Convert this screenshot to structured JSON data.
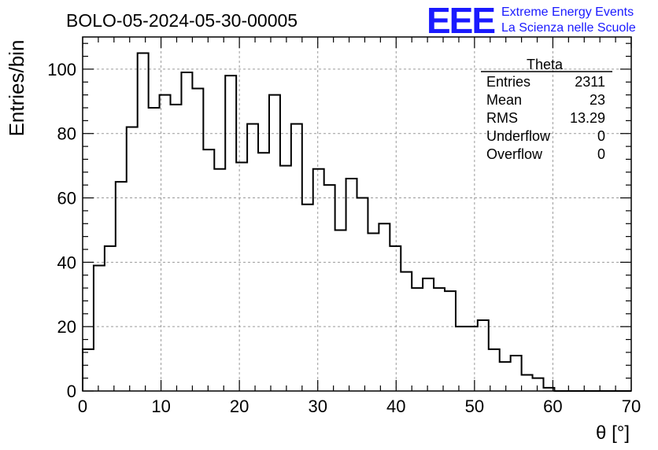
{
  "header": {
    "title": "BOLO-05-2024-05-30-00005",
    "logo_text": "EEE",
    "logo_line1": "Extreme Energy Events",
    "logo_line2": "La Scienza nelle Scuole"
  },
  "stats": {
    "name": "Theta",
    "rows": [
      {
        "label": "Entries",
        "value": "2311"
      },
      {
        "label": "Mean",
        "value": "23"
      },
      {
        "label": "RMS",
        "value": "13.29"
      },
      {
        "label": "Underflow",
        "value": "0"
      },
      {
        "label": "Overflow",
        "value": "0"
      }
    ]
  },
  "colors": {
    "logo": "#1a1aff",
    "line": "#000000",
    "grid": "#9a9a9a"
  },
  "chart_data": {
    "type": "bar",
    "histogram": true,
    "title": "BOLO-05-2024-05-30-00005",
    "xlabel": "θ [°]",
    "ylabel": "Entries/bin",
    "xlim": [
      0,
      70
    ],
    "ylim": [
      0,
      110
    ],
    "grid": true,
    "bin_width": 1.4,
    "bin_edges_start": 0,
    "x_ticks": [
      "0",
      "10",
      "20",
      "30",
      "40",
      "50",
      "60",
      "70"
    ],
    "y_ticks": [
      "0",
      "20",
      "40",
      "60",
      "80",
      "100"
    ],
    "values": [
      13,
      39,
      45,
      65,
      82,
      105,
      88,
      92,
      89,
      99,
      94,
      75,
      69,
      98,
      71,
      83,
      74,
      92,
      70,
      83,
      58,
      69,
      64,
      50,
      66,
      60,
      49,
      52,
      45,
      37,
      32,
      35,
      32,
      31,
      20,
      20,
      22,
      13,
      9,
      11,
      5,
      4,
      1,
      0,
      0,
      0,
      0,
      0,
      0,
      0
    ]
  }
}
